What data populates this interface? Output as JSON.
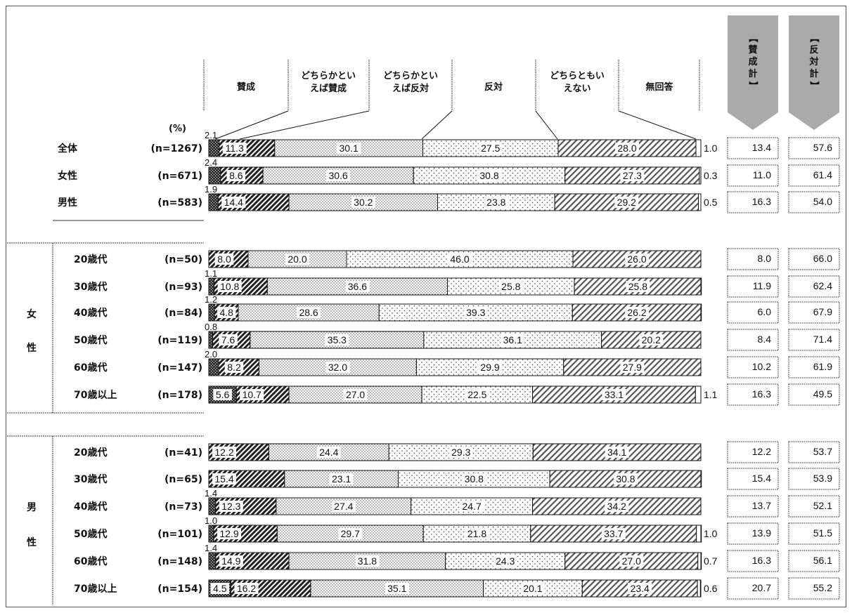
{
  "chart_data": {
    "type": "bar",
    "orientation": "horizontal",
    "stacked": true,
    "unit_label": "(%)",
    "xlim": [
      0,
      100
    ],
    "series_names": [
      "賛成",
      "どちらかといえば賛成",
      "どちらかといえば反対",
      "反対",
      "どちらともいえない",
      "無回答"
    ],
    "legend_headers": [
      [
        "賛成"
      ],
      [
        "どちらかとい",
        "えば賛成"
      ],
      [
        "どちらかとい",
        "えば反対"
      ],
      [
        "反対"
      ],
      [
        "どちらともい",
        "えない"
      ],
      [
        "無回答"
      ]
    ],
    "summary_headers": [
      "【賛成計】",
      "【反対計】"
    ],
    "groups": [
      {
        "label": "",
        "rows": [
          {
            "category": "全体",
            "n": "(n=1267)",
            "values": [
              2.1,
              11.3,
              30.1,
              27.5,
              28.0,
              1.0
            ],
            "sansei_kei": "13.4",
            "hantai_kei": "57.6"
          },
          {
            "category": "女性",
            "n": "(n=671)",
            "values": [
              2.4,
              8.6,
              30.6,
              30.8,
              27.3,
              0.3
            ],
            "sansei_kei": "11.0",
            "hantai_kei": "61.4"
          },
          {
            "category": "男性",
            "n": "(n=583)",
            "values": [
              1.9,
              14.4,
              30.2,
              23.8,
              29.2,
              0.5
            ],
            "sansei_kei": "16.3",
            "hantai_kei": "54.0"
          }
        ]
      },
      {
        "label": "女性",
        "rows": [
          {
            "category": "20歳代",
            "n": "(n=50)",
            "values": [
              0,
              8.0,
              20.0,
              46.0,
              26.0,
              0
            ],
            "sansei_kei": "8.0",
            "hantai_kei": "66.0"
          },
          {
            "category": "30歳代",
            "n": "(n=93)",
            "values": [
              1.1,
              10.8,
              36.6,
              25.8,
              25.8,
              0
            ],
            "sansei_kei": "11.9",
            "hantai_kei": "62.4"
          },
          {
            "category": "40歳代",
            "n": "(n=84)",
            "values": [
              1.2,
              4.8,
              28.6,
              39.3,
              26.2,
              0
            ],
            "sansei_kei": "6.0",
            "hantai_kei": "67.9"
          },
          {
            "category": "50歳代",
            "n": "(n=119)",
            "values": [
              0.8,
              7.6,
              35.3,
              36.1,
              20.2,
              0
            ],
            "sansei_kei": "8.4",
            "hantai_kei": "71.4"
          },
          {
            "category": "60歳代",
            "n": "(n=147)",
            "values": [
              2.0,
              8.2,
              32.0,
              29.9,
              27.9,
              0
            ],
            "sansei_kei": "10.2",
            "hantai_kei": "61.9"
          },
          {
            "category": "70歳以上",
            "n": "(n=178)",
            "values": [
              5.6,
              10.7,
              27.0,
              22.5,
              33.1,
              1.1
            ],
            "sansei_kei": "16.3",
            "hantai_kei": "49.5"
          }
        ]
      },
      {
        "label": "男性",
        "rows": [
          {
            "category": "20歳代",
            "n": "(n=41)",
            "values": [
              0,
              12.2,
              24.4,
              29.3,
              34.1,
              0
            ],
            "sansei_kei": "12.2",
            "hantai_kei": "53.7"
          },
          {
            "category": "30歳代",
            "n": "(n=65)",
            "values": [
              0,
              15.4,
              23.1,
              30.8,
              30.8,
              0
            ],
            "sansei_kei": "15.4",
            "hantai_kei": "53.9"
          },
          {
            "category": "40歳代",
            "n": "(n=73)",
            "values": [
              1.4,
              12.3,
              27.4,
              24.7,
              34.2,
              0
            ],
            "sansei_kei": "13.7",
            "hantai_kei": "52.1"
          },
          {
            "category": "50歳代",
            "n": "(n=101)",
            "values": [
              1.0,
              12.9,
              29.7,
              21.8,
              33.7,
              1.0
            ],
            "sansei_kei": "13.9",
            "hantai_kei": "51.5"
          },
          {
            "category": "60歳代",
            "n": "(n=148)",
            "values": [
              1.4,
              14.9,
              31.8,
              24.3,
              27.0,
              0.7
            ],
            "sansei_kei": "16.3",
            "hantai_kei": "56.1"
          },
          {
            "category": "70歳以上",
            "n": "(n=154)",
            "values": [
              4.5,
              16.2,
              35.1,
              20.1,
              23.4,
              0.6
            ],
            "sansei_kei": "20.7",
            "hantai_kei": "55.2"
          }
        ]
      }
    ],
    "group_side_labels": {
      "female": [
        "女",
        "性"
      ],
      "male": [
        "男",
        "性"
      ]
    }
  }
}
